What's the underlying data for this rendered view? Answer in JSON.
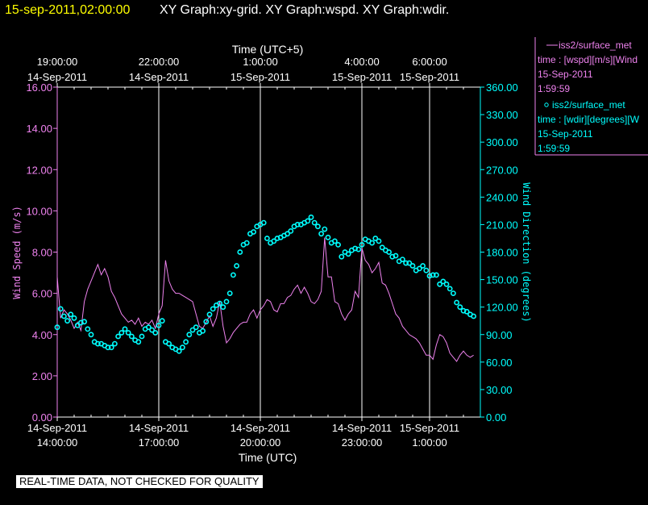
{
  "header": {
    "timestamp": "15-sep-2011,02:00:00",
    "title": "XY Graph:xy-grid.  XY Graph:wspd.  XY Graph:wdir.",
    "timestamp_color": "#ffff00",
    "title_color": "#ffffff"
  },
  "legend": {
    "wspd": {
      "line1": "iss2/surface_met",
      "line2": "time : [wspd][m/s][Wind",
      "line3": "15-Sep-2011",
      "line4": "1:59:59",
      "color": "#ee82ee",
      "marker": "line"
    },
    "wdir": {
      "line1": "iss2/surface_met",
      "line2": "time : [wdir][degrees][W",
      "line3": "15-Sep-2011",
      "line4": "1:59:59",
      "color": "#00ffff",
      "marker": "circle"
    }
  },
  "disclaimer": "REAL-TIME DATA, NOT CHECKED FOR QUALITY",
  "chart_data": {
    "type": "line",
    "xlabel_top": "Time (UTC+5)",
    "xlabel_bottom": "Time (UTC)",
    "ylabel_left": "Wind Speed (m/s)",
    "ylabel_right": "Wind Direction (degrees)",
    "xlim_hours_utc": [
      0,
      12.5
    ],
    "ylim_left": [
      0,
      16
    ],
    "ylim_right": [
      0,
      360
    ],
    "grid": "vertical",
    "top_ticks": [
      {
        "h": 0,
        "line1": "19:00:00",
        "line2": "14-Sep-2011"
      },
      {
        "h": 3,
        "line1": "22:00:00",
        "line2": "14-Sep-2011"
      },
      {
        "h": 6,
        "line1": "1:00:00",
        "line2": "15-Sep-2011"
      },
      {
        "h": 9,
        "line1": "4:00:00",
        "line2": "15-Sep-2011"
      },
      {
        "h": 11,
        "line1": "6:00:00",
        "line2": "15-Sep-2011"
      }
    ],
    "bottom_ticks": [
      {
        "h": 0,
        "line1": "14-Sep-2011",
        "line2": "14:00:00"
      },
      {
        "h": 3,
        "line1": "14-Sep-2011",
        "line2": "17:00:00"
      },
      {
        "h": 6,
        "line1": "14-Sep-2011",
        "line2": "20:00:00"
      },
      {
        "h": 9,
        "line1": "14-Sep-2011",
        "line2": "23:00:00"
      },
      {
        "h": 11,
        "line1": "15-Sep-2011",
        "line2": "1:00:00"
      }
    ],
    "left_ticks": [
      "0.00",
      "2.00",
      "4.00",
      "6.00",
      "8.00",
      "10.00",
      "12.00",
      "14.00",
      "16.00"
    ],
    "right_ticks": [
      "0.00",
      "30.00",
      "60.00",
      "90.00",
      "120.00",
      "150.00",
      "180.00",
      "210.00",
      "240.00",
      "270.00",
      "300.00",
      "330.00",
      "360.00"
    ],
    "series": [
      {
        "name": "iss2/surface_met wspd",
        "axis": "left",
        "style": "line",
        "color": "#ee82ee",
        "x": [
          0,
          0.1,
          0.2,
          0.3,
          0.4,
          0.5,
          0.6,
          0.7,
          0.8,
          0.9,
          1.0,
          1.1,
          1.2,
          1.3,
          1.4,
          1.5,
          1.6,
          1.7,
          1.8,
          1.9,
          2.0,
          2.1,
          2.2,
          2.3,
          2.4,
          2.5,
          2.6,
          2.7,
          2.8,
          2.9,
          3.0,
          3.1,
          3.2,
          3.3,
          3.4,
          3.5,
          3.6,
          3.7,
          3.8,
          3.9,
          4.0,
          4.1,
          4.2,
          4.3,
          4.4,
          4.5,
          4.6,
          4.7,
          4.8,
          4.9,
          5.0,
          5.1,
          5.2,
          5.3,
          5.4,
          5.5,
          5.6,
          5.7,
          5.8,
          5.9,
          6.0,
          6.1,
          6.2,
          6.3,
          6.4,
          6.5,
          6.6,
          6.7,
          6.8,
          6.9,
          7.0,
          7.1,
          7.2,
          7.3,
          7.4,
          7.5,
          7.6,
          7.7,
          7.8,
          7.9,
          8.0,
          8.1,
          8.2,
          8.3,
          8.4,
          8.5,
          8.6,
          8.7,
          8.8,
          8.9,
          9.0,
          9.1,
          9.2,
          9.3,
          9.4,
          9.5,
          9.6,
          9.7,
          9.8,
          9.9,
          10.0,
          10.1,
          10.2,
          10.3,
          10.4,
          10.5,
          10.6,
          10.7,
          10.8,
          10.9,
          11.0,
          11.1,
          11.2,
          11.3,
          11.4,
          11.5,
          11.6,
          11.7,
          11.8,
          11.9,
          12.0,
          12.1,
          12.2,
          12.3
        ],
        "values": [
          6.8,
          4.8,
          5.2,
          5.0,
          4.7,
          4.3,
          4.6,
          4.2,
          5.6,
          6.2,
          6.6,
          7.0,
          7.4,
          6.9,
          7.2,
          6.8,
          6.1,
          5.8,
          5.4,
          5.0,
          4.8,
          4.6,
          4.7,
          4.5,
          4.8,
          4.4,
          4.6,
          4.5,
          4.7,
          4.3,
          5.0,
          5.4,
          7.6,
          6.6,
          6.2,
          6.0,
          6.0,
          5.9,
          5.8,
          5.7,
          5.6,
          5.0,
          4.4,
          4.3,
          4.6,
          4.9,
          4.4,
          4.8,
          5.6,
          4.4,
          3.6,
          3.8,
          4.1,
          4.3,
          4.5,
          4.6,
          4.6,
          5.0,
          5.2,
          4.8,
          5.2,
          5.4,
          5.7,
          5.6,
          5.2,
          5.1,
          5.5,
          5.5,
          5.8,
          5.9,
          6.2,
          6.4,
          6.0,
          6.3,
          6.0,
          5.6,
          5.5,
          5.7,
          6.1,
          8.7,
          6.8,
          6.8,
          5.6,
          5.5,
          5.0,
          4.7,
          5.0,
          5.2,
          6.1,
          5.8,
          8.2,
          7.6,
          7.4,
          7.0,
          7.2,
          7.5,
          6.5,
          6.4,
          6.0,
          5.5,
          5.0,
          4.8,
          4.4,
          4.2,
          4.0,
          3.9,
          3.8,
          3.6,
          3.3,
          3.0,
          3.0,
          2.8,
          3.5,
          4.0,
          3.9,
          3.6,
          3.1,
          2.9,
          2.7,
          3.0,
          3.2,
          3.0,
          2.9,
          3.0
        ]
      },
      {
        "name": "iss2/surface_met wdir",
        "axis": "right",
        "style": "circle",
        "color": "#00ffff",
        "x": [
          0,
          0.1,
          0.2,
          0.3,
          0.4,
          0.5,
          0.6,
          0.7,
          0.8,
          0.9,
          1.0,
          1.1,
          1.2,
          1.3,
          1.4,
          1.5,
          1.6,
          1.7,
          1.8,
          1.9,
          2.0,
          2.1,
          2.2,
          2.3,
          2.4,
          2.5,
          2.6,
          2.7,
          2.8,
          2.9,
          3.0,
          3.1,
          3.2,
          3.3,
          3.4,
          3.5,
          3.6,
          3.7,
          3.8,
          3.9,
          4.0,
          4.1,
          4.2,
          4.3,
          4.4,
          4.5,
          4.6,
          4.7,
          4.8,
          4.9,
          5.0,
          5.1,
          5.2,
          5.3,
          5.4,
          5.5,
          5.6,
          5.7,
          5.8,
          5.9,
          6.0,
          6.1,
          6.2,
          6.3,
          6.4,
          6.5,
          6.6,
          6.7,
          6.8,
          6.9,
          7.0,
          7.1,
          7.2,
          7.3,
          7.4,
          7.5,
          7.6,
          7.7,
          7.8,
          7.9,
          8.0,
          8.1,
          8.2,
          8.3,
          8.4,
          8.5,
          8.6,
          8.7,
          8.8,
          8.9,
          9.0,
          9.1,
          9.2,
          9.3,
          9.4,
          9.5,
          9.6,
          9.7,
          9.8,
          9.9,
          10.0,
          10.1,
          10.2,
          10.3,
          10.4,
          10.5,
          10.6,
          10.7,
          10.8,
          10.9,
          11.0,
          11.1,
          11.2,
          11.3,
          11.4,
          11.5,
          11.6,
          11.7,
          11.8,
          11.9,
          12.0,
          12.1,
          12.2,
          12.3
        ],
        "values": [
          98,
          118,
          110,
          105,
          112,
          108,
          100,
          103,
          104,
          96,
          90,
          82,
          80,
          80,
          78,
          76,
          76,
          80,
          88,
          92,
          96,
          92,
          88,
          84,
          82,
          88,
          96,
          98,
          95,
          92,
          100,
          105,
          82,
          80,
          76,
          74,
          72,
          76,
          82,
          90,
          95,
          98,
          92,
          94,
          104,
          112,
          118,
          122,
          124,
          120,
          126,
          135,
          155,
          165,
          180,
          188,
          190,
          200,
          202,
          208,
          210,
          212,
          195,
          190,
          192,
          195,
          196,
          198,
          200,
          203,
          208,
          210,
          210,
          212,
          214,
          218,
          212,
          208,
          200,
          205,
          196,
          190,
          192,
          188,
          175,
          180,
          178,
          182,
          184,
          183,
          188,
          194,
          192,
          190,
          195,
          192,
          185,
          182,
          180,
          175,
          176,
          170,
          172,
          168,
          168,
          165,
          160,
          162,
          165,
          160,
          154,
          155,
          155,
          145,
          148,
          145,
          140,
          135,
          125,
          120,
          116,
          115,
          112,
          110
        ]
      }
    ]
  }
}
